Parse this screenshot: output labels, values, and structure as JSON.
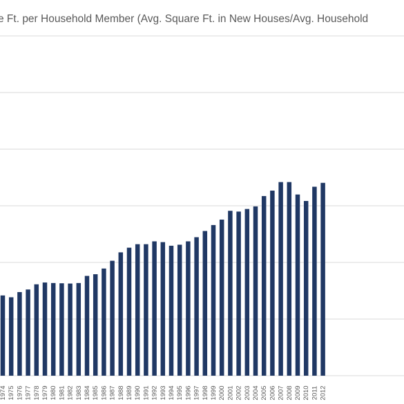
{
  "chart_data": {
    "type": "bar",
    "title": "e Ft. per Household Member (Avg. Square Ft. in New Houses/Avg. Household",
    "xlabel": "",
    "ylabel": "",
    "categories": [
      "1974",
      "1975",
      "1976",
      "1977",
      "1978",
      "1979",
      "1980",
      "1981",
      "1982",
      "1983",
      "1984",
      "1985",
      "1986",
      "1987",
      "1988",
      "1989",
      "1990",
      "1991",
      "1992",
      "1993",
      "1994",
      "1995",
      "1996",
      "1997",
      "1998",
      "1999",
      "2000",
      "2001",
      "2002",
      "2003",
      "2004",
      "2005",
      "2006",
      "2007",
      "2008",
      "2009",
      "2010",
      "2011",
      "2012"
    ],
    "values": [
      0.574,
      0.56,
      0.6,
      0.62,
      0.66,
      0.674,
      0.67,
      0.668,
      0.666,
      0.67,
      0.725,
      0.738,
      0.782,
      0.842,
      0.907,
      0.943,
      0.97,
      0.97,
      0.992,
      0.986,
      0.958,
      0.966,
      0.992,
      1.024,
      1.072,
      1.118,
      1.16,
      1.228,
      1.222,
      1.242,
      1.262,
      1.342,
      1.384,
      1.45,
      1.45,
      1.354,
      1.304,
      1.414,
      1.444
    ],
    "ylim": [
      -0.046,
      2.59
    ],
    "grid": true,
    "legend": "none",
    "colors": {
      "bar": "#203864",
      "grid": "#d9d9d9",
      "text": "#595959"
    }
  }
}
